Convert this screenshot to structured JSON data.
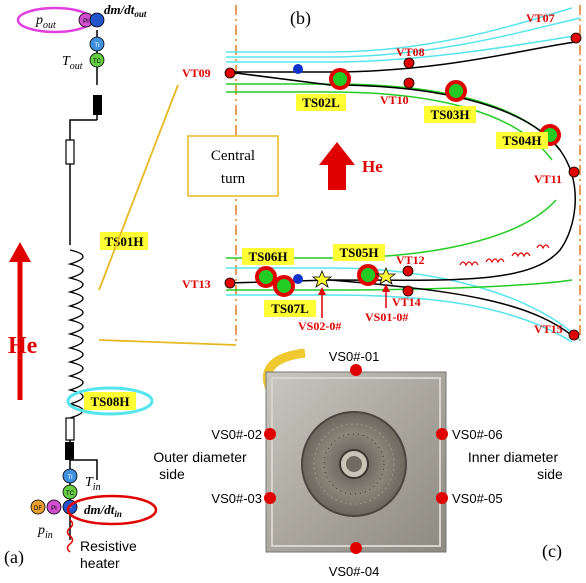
{
  "panel_labels": {
    "a": "(a)",
    "b": "(b)",
    "c": "(c)"
  },
  "panel_a": {
    "p_out": "p",
    "p_out_sub": "out",
    "dmdt_out": "dm/dt",
    "dmdt_out_sub": "out",
    "t_out": "T",
    "t_out_sub": "out",
    "t_in": "T",
    "t_in_sub": "in",
    "p_in": "p",
    "p_in_sub": "in",
    "dmdt_in": "dm/dt",
    "dmdt_in_sub": "in",
    "he_label": "He",
    "ts01h": "TS01H",
    "ts08h": "TS08H",
    "heater_line1": "Resistive",
    "heater_line2": "heater",
    "sensor_codes": {
      "pi": "PI",
      "ti": "TI",
      "tc": "TC",
      "df": "DF",
      "fm": "F"
    }
  },
  "panel_b": {
    "he_label": "He",
    "central_turn_line1": "Central",
    "central_turn_line2": "turn",
    "vt_labels": [
      "VT07",
      "VT08",
      "VT09",
      "VT10",
      "VT11",
      "VT12",
      "VT13",
      "VT14",
      "VT15"
    ],
    "ts_labels": [
      "TS02L",
      "TS03H",
      "TS04H",
      "TS05H",
      "TS06H",
      "TS07L"
    ],
    "vs_labels": [
      "VS02-0#",
      "VS01-0#"
    ]
  },
  "panel_c": {
    "vs_points": [
      "VS0#-01",
      "VS0#-02",
      "VS0#-03",
      "VS0#-04",
      "VS0#-05",
      "VS0#-06"
    ],
    "outer_line1": "Outer diameter",
    "outer_line2": "side",
    "inner_line1": "Inner diameter",
    "inner_line2": "side"
  },
  "colors": {
    "red": "#e00000",
    "yellow": "#ffff33",
    "green": "#22cc22",
    "cyan": "#55e5ee",
    "orange": "#e08020"
  }
}
